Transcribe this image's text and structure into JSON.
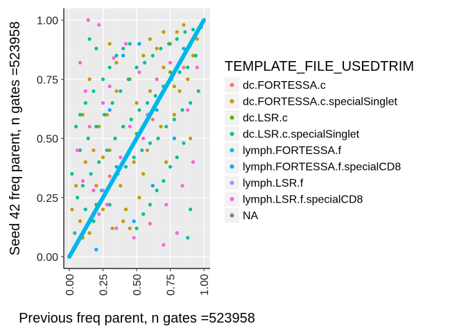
{
  "chart_data": {
    "type": "scatter",
    "title": "",
    "xlabel": "Previous freq parent, n gates =523958",
    "ylabel": "Seed 42 freq parent, n gates =523958",
    "xlim": [
      0,
      1
    ],
    "ylim": [
      0,
      1
    ],
    "x_ticks": [
      "0.00",
      "0.25",
      "0.50",
      "0.75",
      "1.00"
    ],
    "y_ticks": [
      "0.00",
      "0.25",
      "0.50",
      "0.75",
      "1.00"
    ],
    "grid": true,
    "legend_position": "right",
    "legend_title": "TEMPLATE_FILE_USEDTRIM",
    "series": [
      {
        "name": "dc.FORTESSA.c",
        "color": "#F8766D",
        "points": [
          [
            0.62,
            0.58
          ],
          [
            0.3,
            0.34
          ],
          [
            0.85,
            0.8
          ]
        ]
      },
      {
        "name": "dc.FORTESSA.c.specialSinglet",
        "color": "#C49A00",
        "points": [
          [
            0.02,
            0.2
          ],
          [
            0.05,
            0.3
          ],
          [
            0.08,
            0.15
          ],
          [
            0.12,
            0.4
          ],
          [
            0.15,
            0.1
          ],
          [
            0.18,
            0.45
          ],
          [
            0.2,
            0.3
          ],
          [
            0.22,
            0.55
          ],
          [
            0.25,
            0.2
          ],
          [
            0.28,
            0.6
          ],
          [
            0.3,
            0.45
          ],
          [
            0.32,
            0.12
          ],
          [
            0.35,
            0.7
          ],
          [
            0.38,
            0.3
          ],
          [
            0.4,
            0.55
          ],
          [
            0.42,
            0.2
          ],
          [
            0.45,
            0.75
          ],
          [
            0.48,
            0.4
          ],
          [
            0.5,
            0.65
          ],
          [
            0.52,
            0.25
          ],
          [
            0.55,
            0.85
          ],
          [
            0.58,
            0.45
          ],
          [
            0.6,
            0.7
          ],
          [
            0.62,
            0.3
          ],
          [
            0.65,
            0.88
          ],
          [
            0.68,
            0.55
          ],
          [
            0.7,
            0.8
          ],
          [
            0.72,
            0.4
          ],
          [
            0.75,
            0.9
          ],
          [
            0.78,
            0.6
          ],
          [
            0.8,
            0.95
          ],
          [
            0.82,
            0.7
          ],
          [
            0.85,
            0.98
          ],
          [
            0.88,
            0.75
          ],
          [
            0.9,
            0.5
          ],
          [
            0.92,
            0.85
          ],
          [
            0.95,
            0.92
          ],
          [
            0.1,
            0.6
          ],
          [
            0.15,
            0.75
          ],
          [
            0.3,
            0.9
          ],
          [
            0.35,
            0.82
          ],
          [
            0.05,
            0.05
          ],
          [
            0.1,
            0.08
          ],
          [
            0.6,
            0.92
          ],
          [
            0.45,
            0.12
          ],
          [
            0.25,
            0.42
          ],
          [
            0.7,
            0.95
          ],
          [
            0.55,
            0.35
          ],
          [
            0.4,
            0.15
          ],
          [
            0.78,
            0.72
          ]
        ]
      },
      {
        "name": "dc.LSR.c",
        "color": "#53B400",
        "points": [
          [
            0.5,
            0.52
          ],
          [
            0.2,
            0.22
          ],
          [
            0.75,
            0.78
          ]
        ]
      },
      {
        "name": "dc.LSR.c.specialSinglet",
        "color": "#00C094",
        "points": [
          [
            0.02,
            0.35
          ],
          [
            0.04,
            0.1
          ],
          [
            0.06,
            0.25
          ],
          [
            0.08,
            0.45
          ],
          [
            0.1,
            0.3
          ],
          [
            0.12,
            0.2
          ],
          [
            0.14,
            0.5
          ],
          [
            0.16,
            0.35
          ],
          [
            0.18,
            0.15
          ],
          [
            0.2,
            0.55
          ],
          [
            0.22,
            0.4
          ],
          [
            0.24,
            0.28
          ],
          [
            0.26,
            0.6
          ],
          [
            0.28,
            0.45
          ],
          [
            0.3,
            0.22
          ],
          [
            0.32,
            0.65
          ],
          [
            0.34,
            0.5
          ],
          [
            0.36,
            0.35
          ],
          [
            0.38,
            0.7
          ],
          [
            0.4,
            0.55
          ],
          [
            0.42,
            0.38
          ],
          [
            0.44,
            0.75
          ],
          [
            0.46,
            0.58
          ],
          [
            0.48,
            0.42
          ],
          [
            0.5,
            0.8
          ],
          [
            0.52,
            0.62
          ],
          [
            0.54,
            0.45
          ],
          [
            0.56,
            0.82
          ],
          [
            0.58,
            0.65
          ],
          [
            0.6,
            0.48
          ],
          [
            0.62,
            0.85
          ],
          [
            0.64,
            0.68
          ],
          [
            0.66,
            0.5
          ],
          [
            0.68,
            0.88
          ],
          [
            0.7,
            0.72
          ],
          [
            0.72,
            0.55
          ],
          [
            0.74,
            0.9
          ],
          [
            0.76,
            0.75
          ],
          [
            0.78,
            0.58
          ],
          [
            0.8,
            0.92
          ],
          [
            0.82,
            0.78
          ],
          [
            0.84,
            0.62
          ],
          [
            0.86,
            0.95
          ],
          [
            0.88,
            0.8
          ],
          [
            0.9,
            0.65
          ],
          [
            0.92,
            0.96
          ],
          [
            0.94,
            0.85
          ],
          [
            0.96,
            0.7
          ],
          [
            0.98,
            0.97
          ],
          [
            0.05,
            0.55
          ],
          [
            0.08,
            0.6
          ],
          [
            0.12,
            0.65
          ],
          [
            0.18,
            0.7
          ],
          [
            0.25,
            0.75
          ],
          [
            0.3,
            0.8
          ],
          [
            0.35,
            0.85
          ],
          [
            0.4,
            0.88
          ],
          [
            0.45,
            0.9
          ],
          [
            0.5,
            0.12
          ],
          [
            0.55,
            0.18
          ],
          [
            0.6,
            0.22
          ],
          [
            0.65,
            0.28
          ],
          [
            0.7,
            0.32
          ],
          [
            0.75,
            0.38
          ],
          [
            0.8,
            0.42
          ],
          [
            0.85,
            0.48
          ],
          [
            0.9,
            0.2
          ],
          [
            0.88,
            0.08
          ],
          [
            0.15,
            0.92
          ],
          [
            0.2,
            0.88
          ]
        ]
      },
      {
        "name": "lymph.FORTESSA.f",
        "color": "#00B6EB",
        "points": [
          [
            0.0,
            0.0
          ],
          [
            0.1,
            0.1
          ],
          [
            0.2,
            0.2
          ],
          [
            0.3,
            0.3
          ],
          [
            0.4,
            0.4
          ],
          [
            0.5,
            0.5
          ],
          [
            0.6,
            0.6
          ],
          [
            0.7,
            0.7
          ],
          [
            0.8,
            0.8
          ],
          [
            0.9,
            0.9
          ],
          [
            1.0,
            1.0
          ],
          [
            0.35,
            0.38
          ],
          [
            0.65,
            0.62
          ],
          [
            0.85,
            0.88
          ]
        ]
      },
      {
        "name": "lymph.FORTESSA.f.specialCD8",
        "color": "#06A4FF",
        "points": [
          [
            0.4,
            0.85
          ],
          [
            0.52,
            0.9
          ],
          [
            0.48,
            0.15
          ],
          [
            0.2,
            0.03
          ],
          [
            0.78,
            0.5
          ],
          [
            0.62,
            0.3
          ],
          [
            0.3,
            0.62
          ]
        ]
      },
      {
        "name": "lymph.LSR.f",
        "color": "#A58AFF",
        "points": [
          [
            0.58,
            0.6
          ],
          [
            0.25,
            0.28
          ]
        ]
      },
      {
        "name": "lymph.LSR.f.specialCD8",
        "color": "#FB61D7",
        "points": [
          [
            0.14,
            1.0
          ],
          [
            0.22,
            0.98
          ],
          [
            0.33,
            0.84
          ],
          [
            0.42,
            0.9
          ],
          [
            0.12,
            0.7
          ],
          [
            0.25,
            0.65
          ],
          [
            0.06,
            0.45
          ],
          [
            0.1,
            0.32
          ],
          [
            0.18,
            0.28
          ],
          [
            0.28,
            0.22
          ],
          [
            0.35,
            0.12
          ],
          [
            0.48,
            0.08
          ],
          [
            0.6,
            0.14
          ],
          [
            0.72,
            0.22
          ],
          [
            0.84,
            0.3
          ],
          [
            0.92,
            0.4
          ],
          [
            0.7,
            0.05
          ],
          [
            0.55,
            0.5
          ],
          [
            0.65,
            0.75
          ],
          [
            0.75,
            0.82
          ],
          [
            0.45,
            0.55
          ],
          [
            0.38,
            0.42
          ],
          [
            0.22,
            0.18
          ],
          [
            0.15,
            0.55
          ],
          [
            0.08,
            0.82
          ],
          [
            0.3,
            0.72
          ],
          [
            0.52,
            0.78
          ],
          [
            0.88,
            0.62
          ],
          [
            0.95,
            0.8
          ],
          [
            0.8,
            0.1
          ]
        ]
      },
      {
        "name": "NA",
        "color": "#7F7F7F",
        "points": []
      }
    ]
  }
}
